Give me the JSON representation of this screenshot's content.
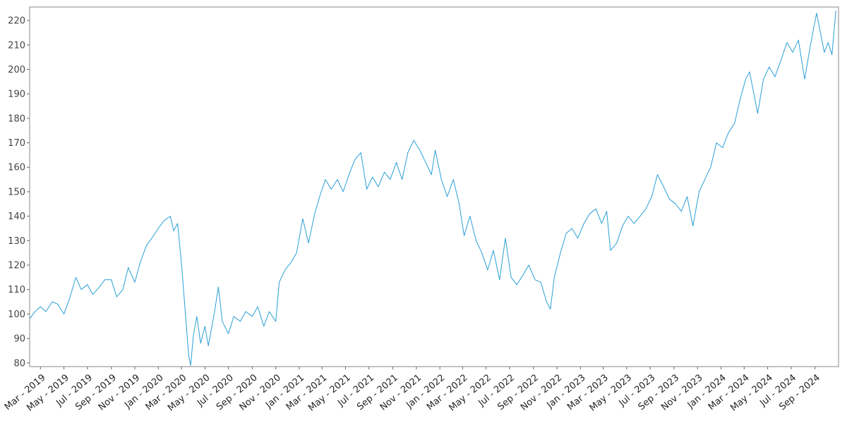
{
  "chart_data": {
    "type": "line",
    "title": "",
    "xlabel": "",
    "ylabel": "",
    "grid": false,
    "legend": "none",
    "x_axis": {
      "type": "date",
      "range": [
        "2019-02-01",
        "2024-11-01"
      ],
      "tick_labels": [
        "Mar - 2019",
        "May - 2019",
        "Jul - 2019",
        "Sep - 2019",
        "Nov - 2019",
        "Jan - 2020",
        "Mar - 2020",
        "May - 2020",
        "Jul - 2020",
        "Sep - 2020",
        "Nov - 2020",
        "Jan - 2021",
        "Mar - 2021",
        "May - 2021",
        "Jul - 2021",
        "Sep - 2021",
        "Nov - 2021",
        "Jan - 2022",
        "Mar - 2022",
        "May - 2022",
        "Jul - 2022",
        "Sep - 2022",
        "Nov - 2022",
        "Jan - 2023",
        "Mar - 2023",
        "May - 2023",
        "Jul - 2023",
        "Sep - 2023",
        "Nov - 2023",
        "Jan - 2024",
        "Mar - 2024",
        "May - 2024",
        "Jul - 2024",
        "Sep - 2024"
      ],
      "tick_dates": [
        "2019-03-01",
        "2019-05-01",
        "2019-07-01",
        "2019-09-01",
        "2019-11-01",
        "2020-01-01",
        "2020-03-01",
        "2020-05-01",
        "2020-07-01",
        "2020-09-01",
        "2020-11-01",
        "2021-01-01",
        "2021-03-01",
        "2021-05-01",
        "2021-07-01",
        "2021-09-01",
        "2021-11-01",
        "2022-01-01",
        "2022-03-01",
        "2022-05-01",
        "2022-07-01",
        "2022-09-01",
        "2022-11-01",
        "2023-01-01",
        "2023-03-01",
        "2023-05-01",
        "2023-07-01",
        "2023-09-01",
        "2023-11-01",
        "2024-01-01",
        "2024-03-01",
        "2024-05-01",
        "2024-07-01",
        "2024-09-01"
      ]
    },
    "y_axis": {
      "ylim": [
        78.5,
        225.5
      ],
      "ticks": [
        80,
        90,
        100,
        110,
        120,
        130,
        140,
        150,
        160,
        170,
        180,
        190,
        200,
        210,
        220
      ]
    },
    "series": [
      {
        "name": "",
        "color": "#2a9fd6",
        "points": [
          [
            "2019-02-01",
            98
          ],
          [
            "2019-02-15",
            101
          ],
          [
            "2019-03-01",
            103
          ],
          [
            "2019-03-15",
            101
          ],
          [
            "2019-04-01",
            105
          ],
          [
            "2019-04-15",
            104
          ],
          [
            "2019-05-01",
            100
          ],
          [
            "2019-05-15",
            106
          ],
          [
            "2019-06-01",
            115
          ],
          [
            "2019-06-15",
            110
          ],
          [
            "2019-07-01",
            112
          ],
          [
            "2019-07-15",
            108
          ],
          [
            "2019-08-01",
            111
          ],
          [
            "2019-08-15",
            114
          ],
          [
            "2019-09-01",
            114
          ],
          [
            "2019-09-15",
            107
          ],
          [
            "2019-10-01",
            110
          ],
          [
            "2019-10-15",
            119
          ],
          [
            "2019-11-01",
            113
          ],
          [
            "2019-11-15",
            121
          ],
          [
            "2019-12-01",
            128
          ],
          [
            "2019-12-15",
            131
          ],
          [
            "2020-01-01",
            135
          ],
          [
            "2020-01-15",
            138
          ],
          [
            "2020-02-01",
            140
          ],
          [
            "2020-02-10",
            134
          ],
          [
            "2020-02-20",
            137
          ],
          [
            "2020-03-01",
            121
          ],
          [
            "2020-03-10",
            103
          ],
          [
            "2020-03-20",
            83
          ],
          [
            "2020-03-25",
            79
          ],
          [
            "2020-04-01",
            91
          ],
          [
            "2020-04-10",
            99
          ],
          [
            "2020-04-20",
            88
          ],
          [
            "2020-05-01",
            95
          ],
          [
            "2020-05-10",
            87
          ],
          [
            "2020-05-25",
            100
          ],
          [
            "2020-06-05",
            111
          ],
          [
            "2020-06-15",
            97
          ],
          [
            "2020-07-01",
            92
          ],
          [
            "2020-07-15",
            99
          ],
          [
            "2020-08-01",
            97
          ],
          [
            "2020-08-15",
            101
          ],
          [
            "2020-09-01",
            99
          ],
          [
            "2020-09-15",
            103
          ],
          [
            "2020-10-01",
            95
          ],
          [
            "2020-10-15",
            101
          ],
          [
            "2020-11-01",
            97
          ],
          [
            "2020-11-10",
            113
          ],
          [
            "2020-11-25",
            118
          ],
          [
            "2020-12-10",
            121
          ],
          [
            "2020-12-25",
            125
          ],
          [
            "2021-01-10",
            139
          ],
          [
            "2021-01-25",
            129
          ],
          [
            "2021-02-10",
            141
          ],
          [
            "2021-02-25",
            149
          ],
          [
            "2021-03-10",
            155
          ],
          [
            "2021-03-25",
            151
          ],
          [
            "2021-04-10",
            155
          ],
          [
            "2021-04-25",
            150
          ],
          [
            "2021-05-10",
            157
          ],
          [
            "2021-05-25",
            163
          ],
          [
            "2021-06-10",
            166
          ],
          [
            "2021-06-25",
            151
          ],
          [
            "2021-07-10",
            156
          ],
          [
            "2021-07-25",
            152
          ],
          [
            "2021-08-10",
            158
          ],
          [
            "2021-08-25",
            155
          ],
          [
            "2021-09-10",
            162
          ],
          [
            "2021-09-25",
            155
          ],
          [
            "2021-10-10",
            166
          ],
          [
            "2021-10-25",
            171
          ],
          [
            "2021-11-10",
            167
          ],
          [
            "2021-11-25",
            162
          ],
          [
            "2021-12-10",
            157
          ],
          [
            "2021-12-20",
            167
          ],
          [
            "2022-01-05",
            155
          ],
          [
            "2022-01-20",
            148
          ],
          [
            "2022-02-05",
            155
          ],
          [
            "2022-02-20",
            145
          ],
          [
            "2022-03-05",
            132
          ],
          [
            "2022-03-20",
            140
          ],
          [
            "2022-04-05",
            130
          ],
          [
            "2022-04-20",
            125
          ],
          [
            "2022-05-05",
            118
          ],
          [
            "2022-05-20",
            126
          ],
          [
            "2022-06-05",
            114
          ],
          [
            "2022-06-20",
            131
          ],
          [
            "2022-07-05",
            115
          ],
          [
            "2022-07-20",
            112
          ],
          [
            "2022-08-05",
            116
          ],
          [
            "2022-08-20",
            120
          ],
          [
            "2022-09-05",
            114
          ],
          [
            "2022-09-20",
            113
          ],
          [
            "2022-10-05",
            105
          ],
          [
            "2022-10-15",
            102
          ],
          [
            "2022-10-25",
            115
          ],
          [
            "2022-11-10",
            125
          ],
          [
            "2022-11-25",
            133
          ],
          [
            "2022-12-10",
            135
          ],
          [
            "2022-12-25",
            131
          ],
          [
            "2023-01-10",
            137
          ],
          [
            "2023-01-25",
            141
          ],
          [
            "2023-02-10",
            143
          ],
          [
            "2023-02-25",
            137
          ],
          [
            "2023-03-10",
            142
          ],
          [
            "2023-03-20",
            126
          ],
          [
            "2023-04-05",
            129
          ],
          [
            "2023-04-20",
            136
          ],
          [
            "2023-05-05",
            140
          ],
          [
            "2023-05-20",
            137
          ],
          [
            "2023-06-05",
            140
          ],
          [
            "2023-06-20",
            143
          ],
          [
            "2023-07-05",
            148
          ],
          [
            "2023-07-20",
            157
          ],
          [
            "2023-08-05",
            152
          ],
          [
            "2023-08-20",
            147
          ],
          [
            "2023-09-05",
            145
          ],
          [
            "2023-09-20",
            142
          ],
          [
            "2023-10-05",
            148
          ],
          [
            "2023-10-20",
            136
          ],
          [
            "2023-11-05",
            150
          ],
          [
            "2023-11-20",
            155
          ],
          [
            "2023-12-05",
            160
          ],
          [
            "2023-12-20",
            170
          ],
          [
            "2024-01-05",
            168
          ],
          [
            "2024-01-20",
            174
          ],
          [
            "2024-02-05",
            178
          ],
          [
            "2024-02-20",
            188
          ],
          [
            "2024-03-05",
            196
          ],
          [
            "2024-03-15",
            199
          ],
          [
            "2024-03-25",
            191
          ],
          [
            "2024-04-05",
            182
          ],
          [
            "2024-04-20",
            196
          ],
          [
            "2024-05-05",
            201
          ],
          [
            "2024-05-20",
            197
          ],
          [
            "2024-06-05",
            204
          ],
          [
            "2024-06-20",
            211
          ],
          [
            "2024-07-05",
            207
          ],
          [
            "2024-07-20",
            212
          ],
          [
            "2024-08-05",
            196
          ],
          [
            "2024-08-20",
            210
          ],
          [
            "2024-09-05",
            223
          ],
          [
            "2024-09-15",
            215
          ],
          [
            "2024-09-25",
            207
          ],
          [
            "2024-10-05",
            211
          ],
          [
            "2024-10-15",
            206
          ],
          [
            "2024-10-25",
            224
          ]
        ]
      }
    ]
  }
}
